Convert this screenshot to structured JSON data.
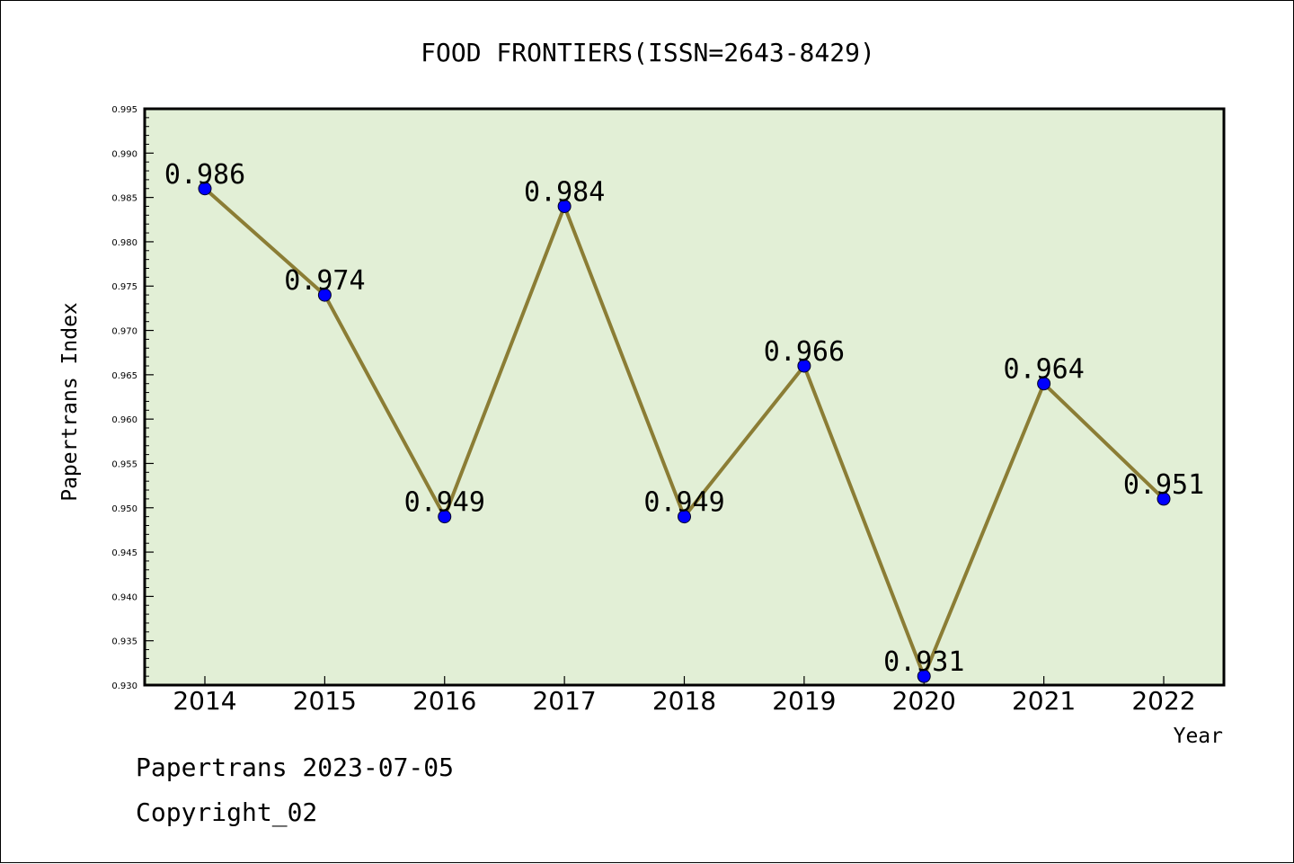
{
  "chart_data": {
    "type": "line",
    "title": "FOOD FRONTIERS(ISSN=2643-8429)",
    "xlabel": "Year",
    "ylabel": "Papertrans Index",
    "categories": [
      "2014",
      "2015",
      "2016",
      "2017",
      "2018",
      "2019",
      "2020",
      "2021",
      "2022"
    ],
    "series": [
      {
        "values": [
          0.986,
          0.974,
          0.949,
          0.984,
          0.949,
          0.966,
          0.931,
          0.964,
          0.951
        ],
        "data_labels": [
          "0.986",
          "0.974",
          "0.949",
          "0.984",
          "0.949",
          "0.966",
          "0.931",
          "0.964",
          "0.951"
        ]
      }
    ],
    "ylim": [
      0.93,
      0.995
    ],
    "y_ticks": [
      "0.930",
      "0.935",
      "0.940",
      "0.945",
      "0.950",
      "0.955",
      "0.960",
      "0.965",
      "0.970",
      "0.975",
      "0.980",
      "0.985",
      "0.990",
      "0.995"
    ],
    "grid": false,
    "legend": "none",
    "colors": {
      "plot_background": "#e2efd6",
      "line": "#8b7d35",
      "marker": "#0000ff",
      "frame": "#000000"
    }
  },
  "footer": {
    "date_text": "Papertrans 2023-07-05",
    "copyright_text": "Copyright_02"
  }
}
